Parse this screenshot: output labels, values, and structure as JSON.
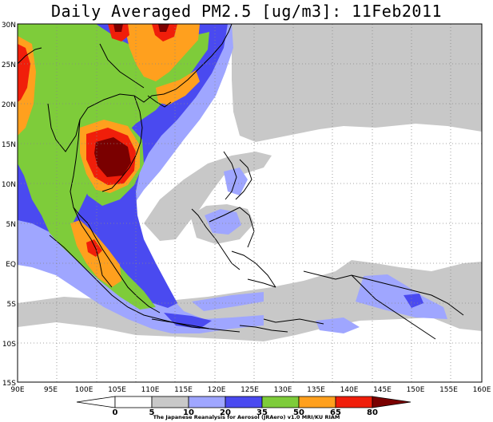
{
  "title": "Daily Averaged PM2.5 [ug/m3]: 11Feb2011",
  "lat_labels": [
    "30N",
    "25N",
    "20N",
    "15N",
    "10N",
    "5N",
    "EQ",
    "5S",
    "10S",
    "15S"
  ],
  "lon_labels": [
    "90E",
    "95E",
    "100E",
    "105E",
    "110E",
    "115E",
    "120E",
    "125E",
    "130E",
    "135E",
    "140E",
    "145E",
    "150E",
    "155E",
    "160E"
  ],
  "colorbar": {
    "levels": [
      "0",
      "5",
      "10",
      "20",
      "35",
      "50",
      "65",
      "80"
    ],
    "colors": [
      "#ffffff",
      "#ffffff",
      "#c8c8c8",
      "#9fa6ff",
      "#4a4af0",
      "#7ecc3a",
      "#ffa01e",
      "#f01e0a",
      "#7a0000"
    ]
  },
  "credit": "The Japanese Reanalysis for Aerosol (JRAero) v1.0  MRI/KU RIAM"
}
